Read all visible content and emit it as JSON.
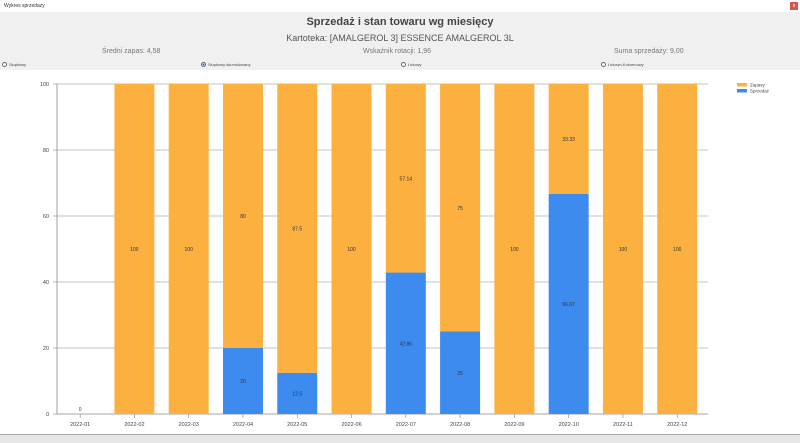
{
  "window": {
    "title": "Wykres sprzedazy",
    "close_label": "x"
  },
  "header": {
    "title": "Sprzedaż i stan towaru wg miesięcy",
    "subtitle": "Kartoteka: [AMALGEROL 3] ESSENCE AMALGEROL 3L",
    "stats": [
      "Średni zapas: 4,58",
      "Wskaźnik rotacji: 1,96",
      "Suma sprzedaży: 9,00"
    ]
  },
  "chart_types": [
    {
      "label": "Słupkowy",
      "selected": false
    },
    {
      "label": "Słupkowy skumulowany",
      "selected": true
    },
    {
      "label": "Liniowy",
      "selected": false
    },
    {
      "label": "Liniowo-Kolumnowy",
      "selected": false
    }
  ],
  "chart_data": {
    "type": "bar",
    "stacked": true,
    "categories": [
      "2022-01",
      "2022-02",
      "2022-03",
      "2022-04",
      "2022-05",
      "2022-06",
      "2022-07",
      "2022-08",
      "2022-09",
      "2022-10",
      "2022-11",
      "2022-12"
    ],
    "series": [
      {
        "name": "Sprzedaż",
        "color": "#3d8bef",
        "values": [
          0,
          0,
          0,
          20,
          12.5,
          0,
          42.86,
          25,
          0,
          66.67,
          0,
          0
        ]
      },
      {
        "name": "Zapasy",
        "color": "#fbb040",
        "values": [
          0,
          100,
          100,
          80,
          87.5,
          100,
          57.14,
          75,
          100,
          33.33,
          100,
          100
        ]
      }
    ],
    "ylim": [
      0,
      100
    ],
    "yticks": [
      0,
      20,
      40,
      60,
      80,
      100
    ],
    "grid": true,
    "legend": "top-right"
  }
}
